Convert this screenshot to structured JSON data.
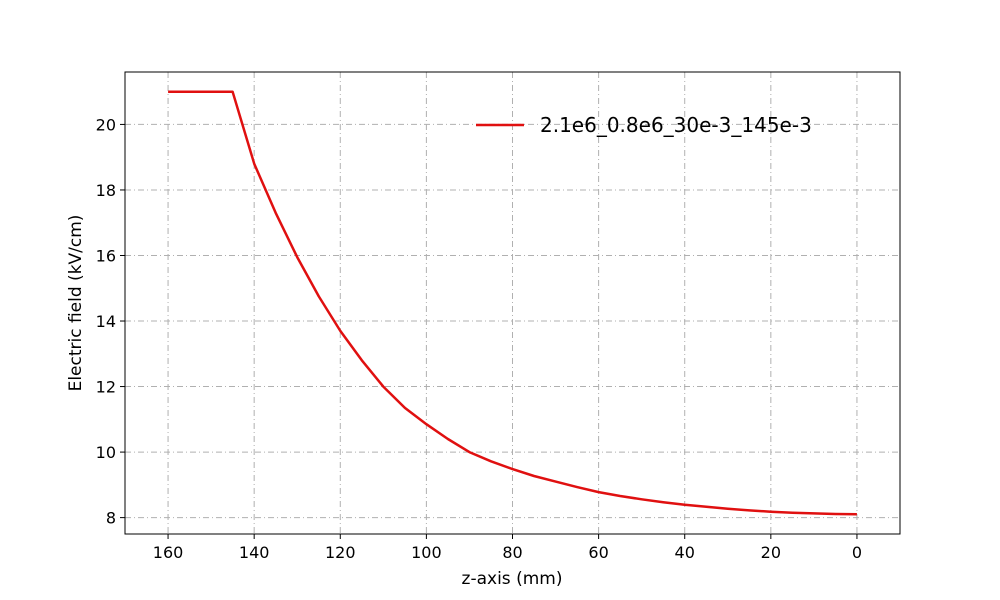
{
  "chart_data": {
    "type": "line",
    "title": "",
    "xlabel": "z-axis (mm)",
    "ylabel": "Electric field (kV/cm)",
    "xlim": [
      170,
      -10
    ],
    "ylim": [
      7.5,
      21.6
    ],
    "x_inverted": true,
    "grid": true,
    "legend_position": "upper-right",
    "xticks": [
      160,
      140,
      120,
      100,
      80,
      60,
      40,
      20,
      0
    ],
    "yticks": [
      8,
      10,
      12,
      14,
      16,
      18,
      20
    ],
    "series": [
      {
        "name": "2.1e6_0.8e6_30e-3_145e-3",
        "color": "#e01010",
        "x": [
          160,
          150,
          145,
          140,
          135,
          130,
          125,
          120,
          115,
          110,
          105,
          100,
          95,
          90,
          85,
          80,
          75,
          70,
          65,
          60,
          55,
          50,
          45,
          40,
          35,
          30,
          25,
          20,
          15,
          10,
          5,
          0
        ],
        "y": [
          21.0,
          21.0,
          21.0,
          18.8,
          17.3,
          15.95,
          14.75,
          13.7,
          12.8,
          12.0,
          11.35,
          10.85,
          10.4,
          10.0,
          9.72,
          9.48,
          9.27,
          9.1,
          8.93,
          8.78,
          8.66,
          8.56,
          8.47,
          8.39,
          8.33,
          8.27,
          8.22,
          8.18,
          8.15,
          8.13,
          8.11,
          8.1
        ]
      }
    ]
  }
}
